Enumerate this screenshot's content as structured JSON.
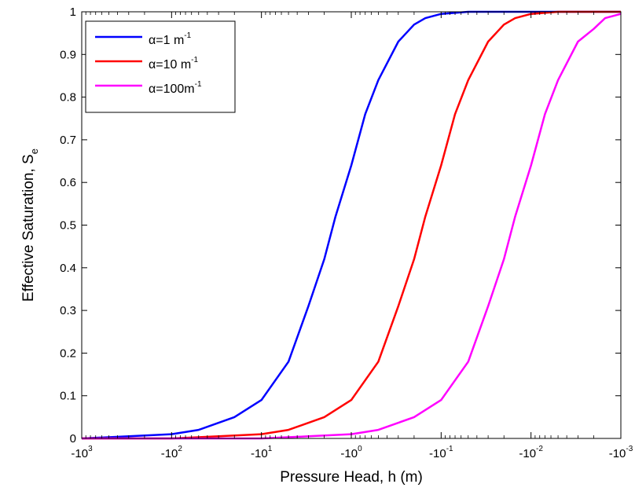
{
  "chart_data": {
    "type": "line",
    "xlabel": "Pressure Head, h (m)",
    "ylabel_main": "Effective Saturation, S",
    "ylabel_sub": "e",
    "x_scale": "log",
    "x_quantity": "-h",
    "xlim": [
      -1000,
      -0.001
    ],
    "ylim": [
      0,
      1
    ],
    "x_ticks": [
      {
        "value": -1000,
        "base": "-10",
        "exp": "3"
      },
      {
        "value": -100,
        "base": "-10",
        "exp": "2"
      },
      {
        "value": -10,
        "base": "-10",
        "exp": "1"
      },
      {
        "value": -1,
        "base": "-10",
        "exp": "0"
      },
      {
        "value": -0.1,
        "base": "-10",
        "exp": "-1"
      },
      {
        "value": -0.01,
        "base": "-10",
        "exp": "-2"
      },
      {
        "value": -0.001,
        "base": "-10",
        "exp": "-3"
      }
    ],
    "y_ticks": [
      {
        "value": 0,
        "label": "0"
      },
      {
        "value": 0.1,
        "label": "0.1"
      },
      {
        "value": 0.2,
        "label": "0.2"
      },
      {
        "value": 0.3,
        "label": "0.3"
      },
      {
        "value": 0.4,
        "label": "0.4"
      },
      {
        "value": 0.5,
        "label": "0.5"
      },
      {
        "value": 0.6,
        "label": "0.6"
      },
      {
        "value": 0.7,
        "label": "0.7"
      },
      {
        "value": 0.8,
        "label": "0.8"
      },
      {
        "value": 0.9,
        "label": "0.9"
      },
      {
        "value": 1,
        "label": "1"
      }
    ],
    "legend_position": "top-left",
    "series": [
      {
        "legend_main": "α=1    m",
        "legend_exp": "-1",
        "color": "#0000ff",
        "x": [
          -1000,
          -300,
          -100,
          -50,
          -20,
          -10,
          -5,
          -3,
          -2,
          -1.5,
          -1,
          -0.7,
          -0.5,
          -0.3,
          -0.2,
          -0.15,
          -0.1,
          -0.05,
          -0.01,
          -0.001
        ],
        "y": [
          0,
          0.005,
          0.01,
          0.02,
          0.05,
          0.09,
          0.18,
          0.31,
          0.42,
          0.52,
          0.64,
          0.76,
          0.84,
          0.93,
          0.97,
          0.985,
          0.995,
          1,
          1,
          1
        ]
      },
      {
        "legend_main": "α=10  m",
        "legend_exp": "-1",
        "color": "#ff0000",
        "x": [
          -1000,
          -300,
          -100,
          -30,
          -10,
          -5,
          -2,
          -1,
          -0.5,
          -0.3,
          -0.2,
          -0.15,
          -0.1,
          -0.07,
          -0.05,
          -0.03,
          -0.02,
          -0.015,
          -0.01,
          -0.005,
          -0.001
        ],
        "y": [
          0,
          0,
          0,
          0.005,
          0.01,
          0.02,
          0.05,
          0.09,
          0.18,
          0.31,
          0.42,
          0.52,
          0.64,
          0.76,
          0.84,
          0.93,
          0.97,
          0.985,
          0.995,
          1,
          1
        ]
      },
      {
        "legend_main": "α=100m",
        "legend_exp": "-1",
        "color": "#ff00ff",
        "x": [
          -1000,
          -100,
          -10,
          -3,
          -1,
          -0.5,
          -0.2,
          -0.1,
          -0.05,
          -0.03,
          -0.02,
          -0.015,
          -0.01,
          -0.007,
          -0.005,
          -0.003,
          -0.002,
          -0.0015,
          -0.001
        ],
        "y": [
          0,
          0,
          0,
          0.005,
          0.01,
          0.02,
          0.05,
          0.09,
          0.18,
          0.31,
          0.42,
          0.52,
          0.64,
          0.76,
          0.84,
          0.93,
          0.96,
          0.985,
          0.995
        ]
      }
    ]
  }
}
